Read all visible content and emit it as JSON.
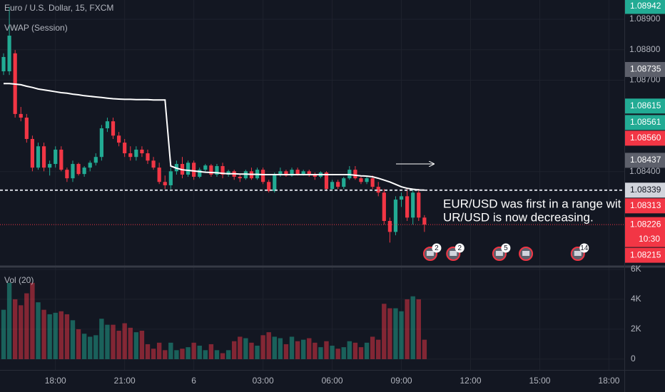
{
  "chart_data": {
    "type": "candlestick",
    "title": "Euro / U.S. Dollar, 15, FXCM",
    "indicator": "VWAP (Session)",
    "volume_title": "Vol (20)",
    "xlim": [
      -0.62,
      107.67
    ],
    "xticks": [
      {
        "value": 9,
        "label": "18:00"
      },
      {
        "value": 21,
        "label": "21:00"
      },
      {
        "value": 33,
        "label": "6"
      },
      {
        "value": 45,
        "label": "03:00"
      },
      {
        "value": 57,
        "label": "06:00"
      },
      {
        "value": 69,
        "label": "09:00"
      },
      {
        "value": 81,
        "label": "12:00"
      },
      {
        "value": 93,
        "label": "15:00"
      },
      {
        "value": 105,
        "label": "18:00"
      }
    ],
    "ylim": [
      1.08093,
      1.08963
    ],
    "yticks": [
      {
        "value": 1.089,
        "label": "1.08900"
      },
      {
        "value": 1.088,
        "label": "1.08800"
      },
      {
        "value": 1.087,
        "label": "1.08700"
      },
      {
        "value": 1.084,
        "label": "1.08400"
      }
    ],
    "y2lim": [
      -670,
      6140
    ],
    "y2ticks": [
      0,
      {
        "value": 2000,
        "label": "2K"
      },
      {
        "value": 4000,
        "label": "4K"
      },
      {
        "value": 6000,
        "label": "6K"
      }
    ],
    "grid": true,
    "up_color": "#22ab94",
    "down_color": "#f23645",
    "vwap_color": "#ffffff",
    "ohlc": [
      [
        1.08729,
        1.08788,
        1.08717,
        1.08776
      ],
      [
        1.08729,
        1.0894,
        1.08717,
        1.08846
      ],
      [
        1.08788,
        1.08799,
        1.08577,
        1.08589
      ],
      [
        1.08589,
        1.08612,
        1.08565,
        1.08577
      ],
      [
        1.08577,
        1.08589,
        1.08495,
        1.08507
      ],
      [
        1.08507,
        1.08518,
        1.08401,
        1.08413
      ],
      [
        1.08413,
        1.08495,
        1.08406,
        1.08483
      ],
      [
        1.08483,
        1.08495,
        1.08401,
        1.08413
      ],
      [
        1.08413,
        1.08436,
        1.08387,
        1.08425
      ],
      [
        1.08425,
        1.08483,
        1.08413,
        1.08472
      ],
      [
        1.08472,
        1.08483,
        1.08401,
        1.08406
      ],
      [
        1.08406,
        1.08413,
        1.08366,
        1.08378
      ],
      [
        1.08378,
        1.08436,
        1.08366,
        1.08425
      ],
      [
        1.08425,
        1.08429,
        1.08387,
        1.08392
      ],
      [
        1.08392,
        1.08418,
        1.08383,
        1.08413
      ],
      [
        1.08413,
        1.08436,
        1.08401,
        1.08429
      ],
      [
        1.08429,
        1.0846,
        1.0842,
        1.08448
      ],
      [
        1.08448,
        1.08553,
        1.08436,
        1.08542
      ],
      [
        1.08542,
        1.08577,
        1.0853,
        1.08565
      ],
      [
        1.08565,
        1.08577,
        1.08507,
        1.08518
      ],
      [
        1.08518,
        1.0853,
        1.08483,
        1.08495
      ],
      [
        1.08495,
        1.08507,
        1.08448,
        1.0846
      ],
      [
        1.0846,
        1.08483,
        1.08436,
        1.08448
      ],
      [
        1.08448,
        1.08483,
        1.08436,
        1.08472
      ],
      [
        1.08472,
        1.08483,
        1.08448,
        1.0846
      ],
      [
        1.0846,
        1.08472,
        1.08425,
        1.08436
      ],
      [
        1.08436,
        1.08448,
        1.08406,
        1.08413
      ],
      [
        1.08413,
        1.08429,
        1.08359,
        1.08366
      ],
      [
        1.08366,
        1.08387,
        1.08343,
        1.08355
      ],
      [
        1.08355,
        1.08413,
        1.08343,
        1.08401
      ],
      [
        1.08401,
        1.08436,
        1.0839,
        1.08425
      ],
      [
        1.08425,
        1.08448,
        1.08378,
        1.0839
      ],
      [
        1.0839,
        1.08436,
        1.08383,
        1.08429
      ],
      [
        1.08429,
        1.08436,
        1.08373,
        1.08383
      ],
      [
        1.08383,
        1.08413,
        1.08378,
        1.08406
      ],
      [
        1.08406,
        1.08425,
        1.08397,
        1.0842
      ],
      [
        1.0842,
        1.08425,
        1.08383,
        1.0839
      ],
      [
        1.0839,
        1.08425,
        1.08383,
        1.08418
      ],
      [
        1.08418,
        1.08429,
        1.08378,
        1.0839
      ],
      [
        1.0839,
        1.08406,
        1.08383,
        1.08401
      ],
      [
        1.08401,
        1.08406,
        1.08373,
        1.08383
      ],
      [
        1.08383,
        1.0839,
        1.08366,
        1.08378
      ],
      [
        1.08378,
        1.08406,
        1.08373,
        1.08401
      ],
      [
        1.08401,
        1.08413,
        1.08373,
        1.08378
      ],
      [
        1.08378,
        1.08413,
        1.08373,
        1.08406
      ],
      [
        1.08406,
        1.08413,
        1.08359,
        1.08366
      ],
      [
        1.08366,
        1.08373,
        1.08331,
        1.08336
      ],
      [
        1.08336,
        1.08397,
        1.08331,
        1.0839
      ],
      [
        1.0839,
        1.08413,
        1.08383,
        1.08401
      ],
      [
        1.08401,
        1.08406,
        1.08383,
        1.08387
      ],
      [
        1.08387,
        1.08413,
        1.08383,
        1.08406
      ],
      [
        1.08406,
        1.08413,
        1.08387,
        1.08392
      ],
      [
        1.08392,
        1.08406,
        1.08387,
        1.08401
      ],
      [
        1.08401,
        1.08406,
        1.08383,
        1.0839
      ],
      [
        1.0839,
        1.08397,
        1.08373,
        1.08383
      ],
      [
        1.08383,
        1.08401,
        1.08378,
        1.08397
      ],
      [
        1.08397,
        1.08401,
        1.08336,
        1.08343
      ],
      [
        1.08343,
        1.08373,
        1.08336,
        1.08366
      ],
      [
        1.08366,
        1.08373,
        1.08343,
        1.0835
      ],
      [
        1.0835,
        1.08383,
        1.08343,
        1.08378
      ],
      [
        1.08378,
        1.08418,
        1.08373,
        1.08406
      ],
      [
        1.08406,
        1.08418,
        1.08373,
        1.08378
      ],
      [
        1.08378,
        1.08383,
        1.08359,
        1.08366
      ],
      [
        1.08366,
        1.08383,
        1.08359,
        1.08378
      ],
      [
        1.08378,
        1.08387,
        1.08343,
        1.0835
      ],
      [
        1.0835,
        1.08366,
        1.08319,
        1.08331
      ],
      [
        1.08331,
        1.08343,
        1.08226,
        1.08238
      ],
      [
        1.08238,
        1.08249,
        1.08167,
        1.08202
      ],
      [
        1.08202,
        1.08319,
        1.08191,
        1.08308
      ],
      [
        1.08308,
        1.08331,
        1.08284,
        1.08319
      ],
      [
        1.08319,
        1.08343,
        1.08238,
        1.08249
      ],
      [
        1.08249,
        1.08343,
        1.08226,
        1.08331
      ],
      [
        1.08331,
        1.08343,
        1.08238,
        1.08249
      ],
      [
        1.08249,
        1.08257,
        1.08202,
        1.08226
      ]
    ],
    "volume": [
      3300,
      5100,
      4000,
      3600,
      4400,
      5100,
      3800,
      3300,
      3000,
      3100,
      3200,
      3000,
      2600,
      2000,
      1700,
      1500,
      1600,
      2700,
      2300,
      2300,
      1900,
      2400,
      2100,
      1800,
      1900,
      1000,
      700,
      1100,
      600,
      1100,
      600,
      700,
      800,
      1100,
      900,
      600,
      1000,
      600,
      400,
      600,
      1200,
      1500,
      1400,
      1100,
      900,
      1600,
      1800,
      1500,
      1400,
      1000,
      1500,
      1200,
      1300,
      1400,
      1100,
      800,
      1200,
      900,
      700,
      800,
      1200,
      1100,
      800,
      1100,
      1500,
      1300,
      3700,
      3400,
      3400,
      3200,
      4000,
      4200,
      4000,
      1300
    ],
    "vwap": [
      1.08689,
      1.08689,
      1.08687,
      1.08685,
      1.0868,
      1.08676,
      1.08671,
      1.08668,
      1.08665,
      1.08662,
      1.08659,
      1.08657,
      1.08654,
      1.08652,
      1.08649,
      1.08647,
      1.08645,
      1.08643,
      1.08641,
      1.08639,
      1.08638,
      1.08637,
      1.08637,
      1.08636,
      1.08636,
      1.08636,
      1.08635,
      1.08635,
      1.08635,
      1.08418,
      1.08411,
      1.08406,
      1.08404,
      1.08402,
      1.084,
      1.08398,
      1.08397,
      1.08396,
      1.08394,
      1.08393,
      1.08393,
      1.08392,
      1.08392,
      1.08391,
      1.08391,
      1.0839,
      1.0839,
      1.0839,
      1.0839,
      1.0839,
      1.0839,
      1.0839,
      1.0839,
      1.0839,
      1.0839,
      1.0839,
      1.0839,
      1.0839,
      1.0839,
      1.0839,
      1.0839,
      1.08388,
      1.08386,
      1.08385,
      1.08383,
      1.08378,
      1.08372,
      1.08366,
      1.08358,
      1.0835,
      1.08345,
      1.08342,
      1.0834,
      1.08339
    ],
    "price_labels": [
      {
        "value": 1.08942,
        "label": "1.08942",
        "color": "#22ab94"
      },
      {
        "value": 1.08735,
        "label": "1.08735",
        "color": "#5d606b"
      },
      {
        "value": 1.08615,
        "label": "1.08615",
        "color": "#22ab94"
      },
      {
        "value": 1.08561,
        "label": "1.08561",
        "color": "#22ab94"
      },
      {
        "value": 1.0856,
        "label": "1.08560",
        "color": "#f23645"
      },
      {
        "value": 1.08437,
        "label": "1.08437",
        "color": "#5d606b"
      },
      {
        "value": 1.08339,
        "label": "1.08339",
        "color": "#d1d4dc",
        "line": "dashed"
      },
      {
        "value": 1.08313,
        "label": "1.08313",
        "color": "#f23645"
      },
      {
        "value": 1.08226,
        "label": "1.08226",
        "color": "#f23645",
        "line": "dotted",
        "countdown": "10:30"
      },
      {
        "value": 1.08215,
        "label": "1.08215",
        "color": "#f23645"
      }
    ],
    "events": [
      {
        "x": 74,
        "count": "2"
      },
      {
        "x": 78,
        "count": "2"
      },
      {
        "x": 86,
        "count": "5"
      },
      {
        "x": 90.6
      },
      {
        "x": 99.6,
        "count": "14"
      }
    ],
    "annotation": [
      "EUR/USD was first in a range wit",
      "UR/USD is now decreasing."
    ]
  }
}
